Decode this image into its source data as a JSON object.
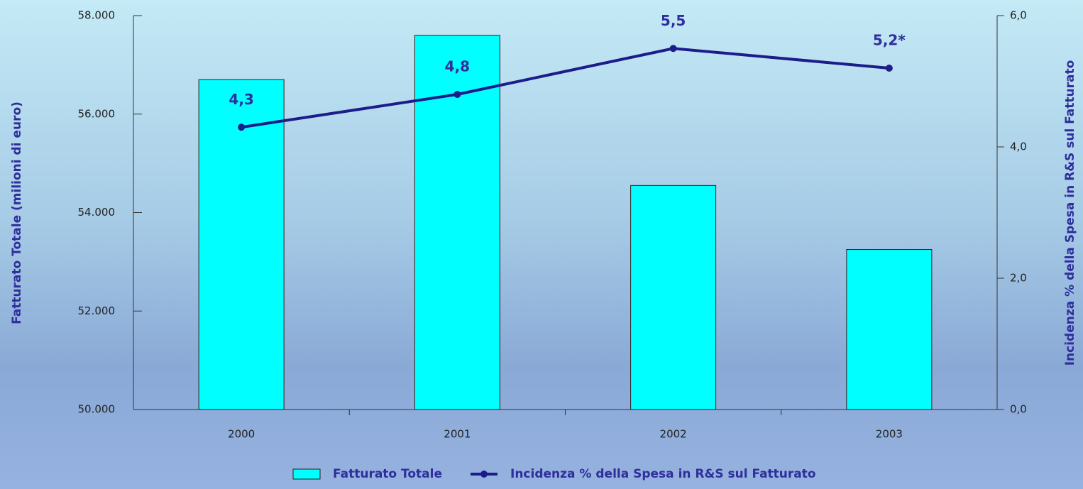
{
  "chart_data": {
    "type": "bar",
    "categories": [
      "2000",
      "2001",
      "2002",
      "2003"
    ],
    "series": [
      {
        "name": "Fatturato Totale",
        "type": "bar",
        "color": "#00ffff",
        "values": [
          56700,
          57600,
          54550,
          53250
        ]
      },
      {
        "name": "Incidenza % della Spesa in R&S sul Fatturato",
        "type": "line",
        "axis": "y2",
        "color": "#1c1c8a",
        "values": [
          4.3,
          4.8,
          5.5,
          5.2
        ],
        "value_labels": [
          "4,3",
          "4,8",
          "5,5",
          "5,2*"
        ]
      }
    ],
    "y_label": "Fatturato Totale (milioni di euro)",
    "y2_label": "Incidenza % della Spesa in R&S sul Fatturato",
    "ylim": [
      50000,
      58000
    ],
    "yticks": [
      {
        "value": 50000,
        "label": "50.000"
      },
      {
        "value": 52000,
        "label": "52.000"
      },
      {
        "value": 54000,
        "label": "54.000"
      },
      {
        "value": 56000,
        "label": "56.000"
      },
      {
        "value": 58000,
        "label": "58.000"
      }
    ],
    "y2lim": [
      0,
      6
    ],
    "y2ticks": [
      {
        "value": 0,
        "label": "0,0"
      },
      {
        "value": 2,
        "label": "2,0"
      },
      {
        "value": 4,
        "label": "4,0"
      },
      {
        "value": 6,
        "label": "6,0"
      }
    ],
    "legend": "bottom"
  }
}
